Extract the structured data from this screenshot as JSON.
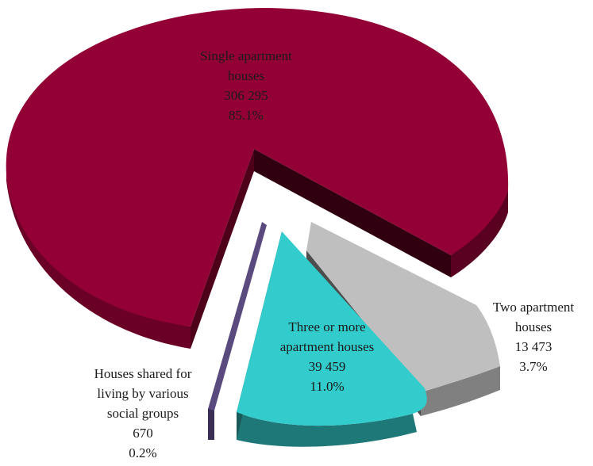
{
  "chart_data": {
    "type": "pie",
    "style": "3d-exploded",
    "slices": [
      {
        "label": [
          "Single apartment",
          "houses"
        ],
        "value_text": "306 295",
        "percent_text": "85.1%",
        "value": 306295,
        "percent": 85.1,
        "color": "#930035"
      },
      {
        "label": [
          "Two apartment",
          "houses"
        ],
        "value_text": "13 473",
        "percent_text": "3.7%",
        "value": 13473,
        "percent": 3.7,
        "color": "#bfbfbf"
      },
      {
        "label": [
          "Three or more",
          "apartment houses"
        ],
        "value_text": "39 459",
        "percent_text": "11.0%",
        "value": 39459,
        "percent": 11.0,
        "color": "#33cccc"
      },
      {
        "label": [
          "Houses shared for",
          "living by various",
          "social groups"
        ],
        "value_text": "670",
        "percent_text": "0.2%",
        "value": 670,
        "percent": 0.2,
        "color": "#5b4a7e"
      }
    ]
  }
}
